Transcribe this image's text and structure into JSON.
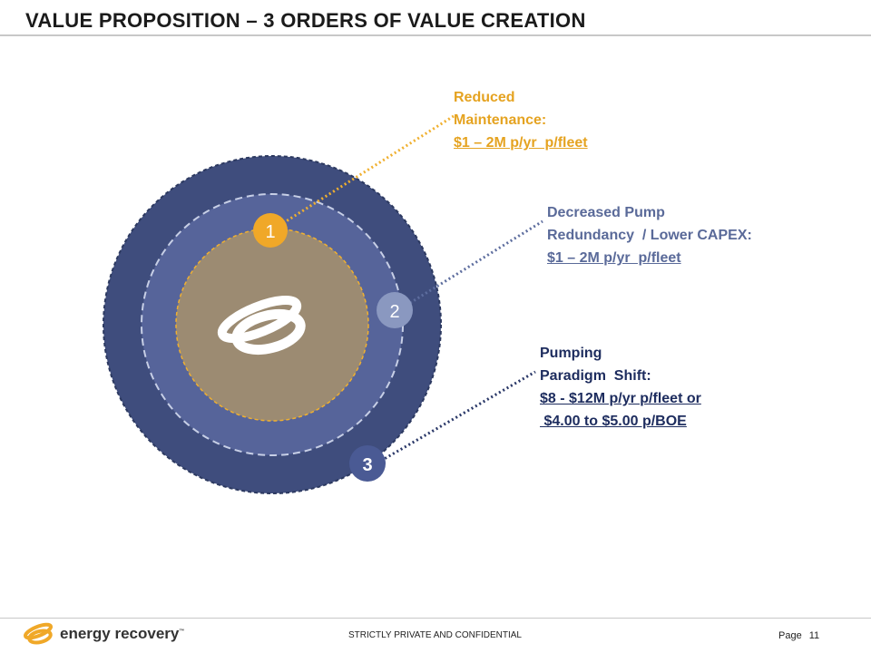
{
  "header": {
    "title": "VALUE PROPOSITION – 3 ORDERS OF VALUE CREATION"
  },
  "diagram": {
    "rings": [
      {
        "badge": "1",
        "badge_color": "#f0a828",
        "fill": "#9c8b72",
        "line_color": "#f0a828",
        "label": {
          "line1": "Reduced",
          "line2": "Maintenance:",
          "value": "$1 – 2M p/yr  p/fleet"
        }
      },
      {
        "badge": "2",
        "badge_color": "#8a98c0",
        "fill": "#56649a",
        "line_color": "#5d6d9e",
        "label": {
          "line1": "Decreased Pump",
          "line2": "Redundancy  / Lower CAPEX:",
          "value": "$1 – 2M p/yr  p/fleet"
        }
      },
      {
        "badge": "3",
        "badge_color": "#4a5a94",
        "fill": "#3f4d7d",
        "line_color": "#2a3868",
        "label": {
          "line1": "Pumping",
          "line2": "Paradigm  Shift:",
          "value": "$8 - $12M p/yr p/fleet or",
          "value2": " $4.00 to $5.00 p/BOE"
        }
      }
    ],
    "center_icon": "energy-recovery-logo-icon"
  },
  "footer": {
    "brand": "energy recovery",
    "trademark": "™",
    "confidential": "STRICTLY PRIVATE AND CONFIDENTIAL",
    "page_label": "Page",
    "page_number": "11"
  }
}
